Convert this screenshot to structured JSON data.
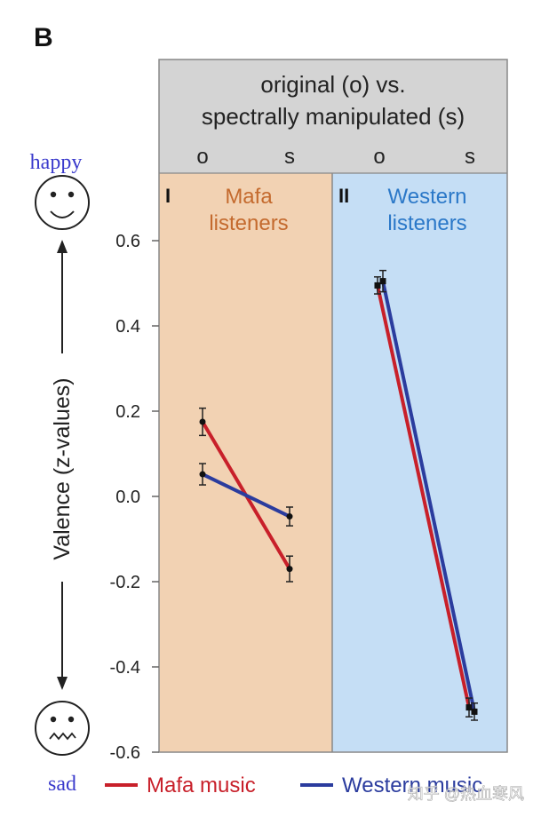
{
  "panel_letter": "B",
  "header": {
    "line1": "original (o) vs.",
    "line2": "spectrally manipulated (s)"
  },
  "left_labels": {
    "happy": "happy",
    "sad": "sad",
    "axis_title": "Valence (z-values)"
  },
  "watermark": "知乎 @热血寒风",
  "colors": {
    "mafa_line": "#c8202a",
    "western_line": "#2b3c9e",
    "panel_I_bg": "#f2d2b3",
    "panel_II_bg": "#c5def5",
    "header_bg": "#d4d4d4",
    "panel_I_text": "#c46a2e",
    "panel_II_text": "#2b78c8",
    "emotion_word": "#3a3acc"
  },
  "chart_data": {
    "type": "line",
    "ylabel": "Valence (z-values)",
    "ylim": [
      -0.6,
      0.6
    ],
    "yticks": [
      "0.6",
      "0.4",
      "0.2",
      "0.0",
      "-0.2",
      "-0.4",
      "-0.6"
    ],
    "panels": [
      {
        "id": "I",
        "numeral": "I",
        "title_line1": "Mafa",
        "title_line2": "listeners",
        "categories": [
          "o",
          "s"
        ],
        "series": [
          {
            "name": "Mafa music",
            "values": [
              0.175,
              -0.17
            ],
            "errors": [
              0.032,
              0.03
            ]
          },
          {
            "name": "Western music",
            "values": [
              0.052,
              -0.047
            ],
            "errors": [
              0.025,
              0.022
            ]
          }
        ]
      },
      {
        "id": "II",
        "numeral": "II",
        "title_line1": "Western",
        "title_line2": "listeners",
        "categories": [
          "o",
          "s"
        ],
        "series": [
          {
            "name": "Mafa music",
            "values": [
              0.495,
              -0.495
            ],
            "errors": [
              0.02,
              0.022
            ]
          },
          {
            "name": "Western music",
            "values": [
              0.505,
              -0.505
            ],
            "errors": [
              0.025,
              0.02
            ]
          }
        ]
      }
    ],
    "legend": [
      {
        "name": "Mafa music",
        "color": "#c8202a"
      },
      {
        "name": "Western music",
        "color": "#2b3c9e"
      }
    ]
  }
}
